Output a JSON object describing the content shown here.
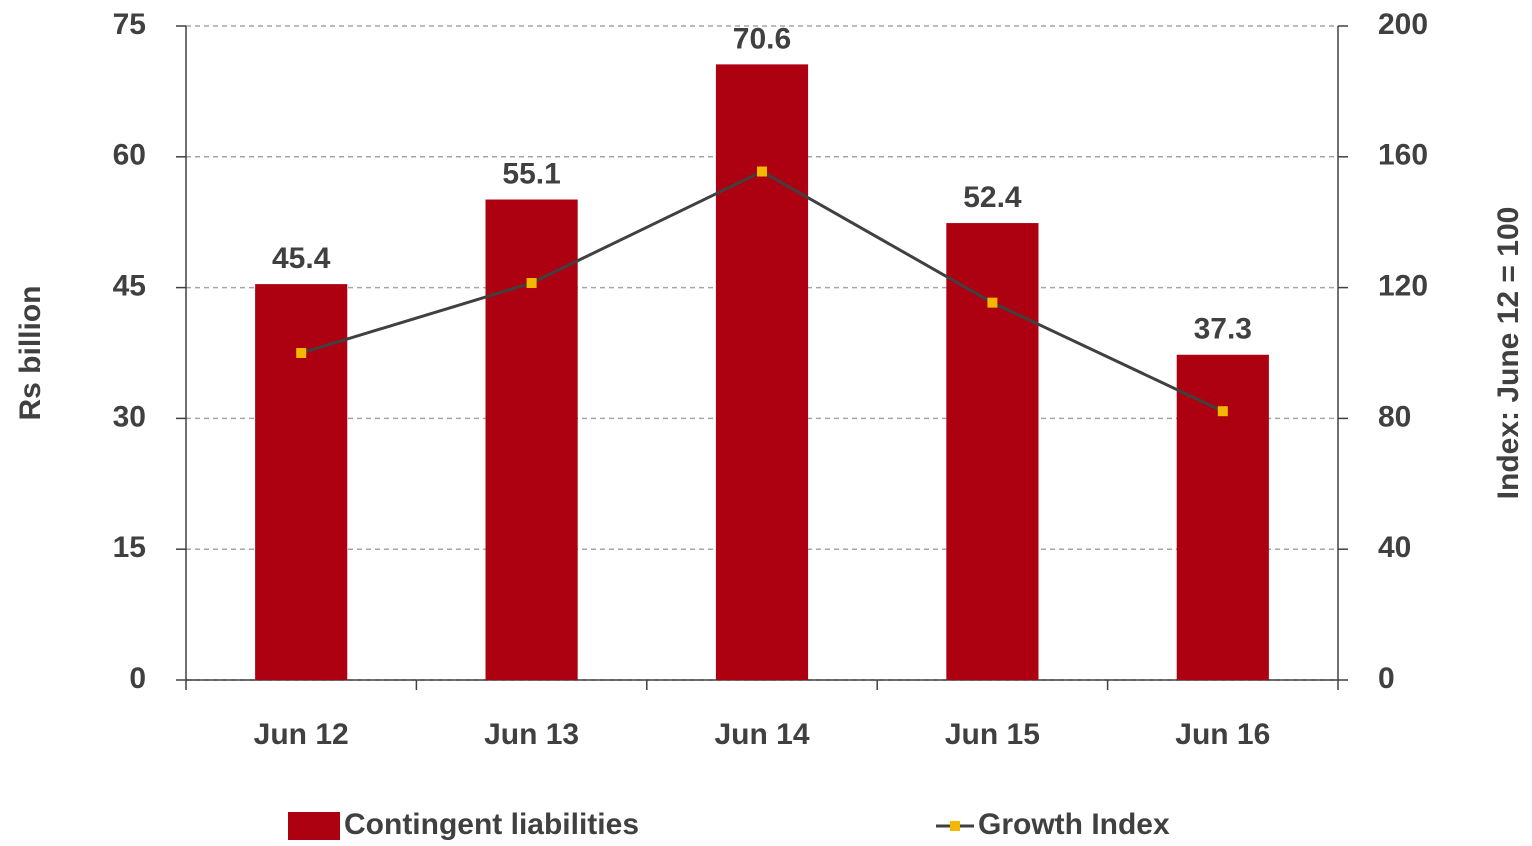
{
  "chart_data": {
    "type": "bar",
    "categories": [
      "Jun 12",
      "Jun 13",
      "Jun 14",
      "Jun 15",
      "Jun 16"
    ],
    "series": [
      {
        "name": "Contingent liabilities",
        "type": "bar",
        "color": "#ad0010",
        "values": [
          45.4,
          55.1,
          70.6,
          52.4,
          37.3
        ]
      },
      {
        "name": "Growth Index",
        "type": "line",
        "axis": "y2",
        "color": "#404040",
        "marker_color": "#f5b800",
        "values": [
          100,
          121.4,
          155.5,
          115.4,
          82.2
        ]
      }
    ],
    "ylabel": "Rs billion",
    "y2label": "Index: June 12 = 100",
    "ylim": [
      0,
      75
    ],
    "yticks": [
      0,
      15,
      30,
      45,
      60,
      75
    ],
    "y2lim": [
      0,
      200
    ],
    "y2ticks": [
      0,
      40,
      80,
      120,
      160,
      200
    ],
    "grid": true,
    "legend": "bottom"
  }
}
